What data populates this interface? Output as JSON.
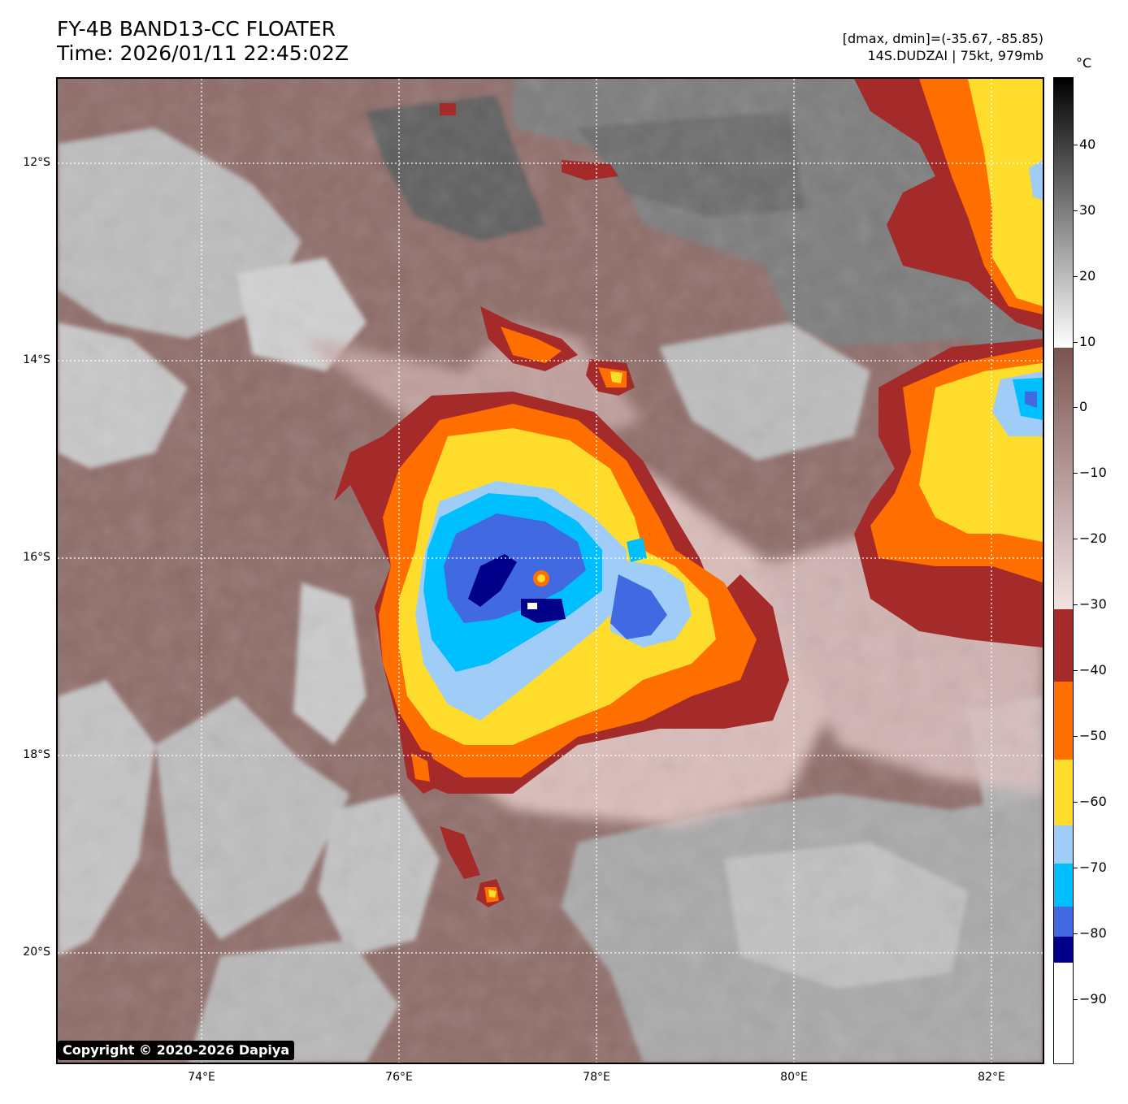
{
  "header": {
    "title_line1": "FY-4B BAND13-CC FLOATER",
    "title_line2": "Time: 2026/01/11 22:45:02Z",
    "dmax_dmin": "[dmax, dmin]=(-35.67, -85.85)",
    "storm_info": "14S.DUDZAI | 75kt, 979mb"
  },
  "map": {
    "latitude_labels": [
      "12°S",
      "14°S",
      "16°S",
      "18°S",
      "20°S"
    ],
    "longitude_labels": [
      "74°E",
      "76°E",
      "78°E",
      "80°E",
      "82°E"
    ],
    "grid": "dotted white lines at 2° intervals",
    "storm_center": {
      "lat": -16.2,
      "lon": 77.4
    },
    "copyright": "Copyright © 2020-2026 Dapiya"
  },
  "colorbar": {
    "unit": "°C",
    "tick_labels": [
      "40",
      "30",
      "20",
      "10",
      "0",
      "−10",
      "−20",
      "−30",
      "−40",
      "−50",
      "−60",
      "−70",
      "−80",
      "−90"
    ],
    "range": [
      -100,
      50
    ],
    "bands": [
      {
        "from": 50,
        "to": 10,
        "color_top": "#000000",
        "color_bottom": "#ffffff"
      },
      {
        "from": 9,
        "to": -30,
        "color_top": "#7a5550",
        "color_bottom": "#f2e3e2"
      },
      {
        "from": -30,
        "to": -41,
        "color": "#a52a2a"
      },
      {
        "from": -41,
        "to": -53,
        "color": "#ff6f00"
      },
      {
        "from": -53,
        "to": -63,
        "color": "#fddc2c"
      },
      {
        "from": -63,
        "to": -69,
        "color": "#a0cdf8"
      },
      {
        "from": -69,
        "to": -76,
        "color": "#00bfff"
      },
      {
        "from": -76,
        "to": -80,
        "color": "#4169e1"
      },
      {
        "from": -80,
        "to": -84,
        "color": "#00008b"
      },
      {
        "from": -84,
        "to": -100,
        "color": "#ffffff"
      }
    ]
  }
}
